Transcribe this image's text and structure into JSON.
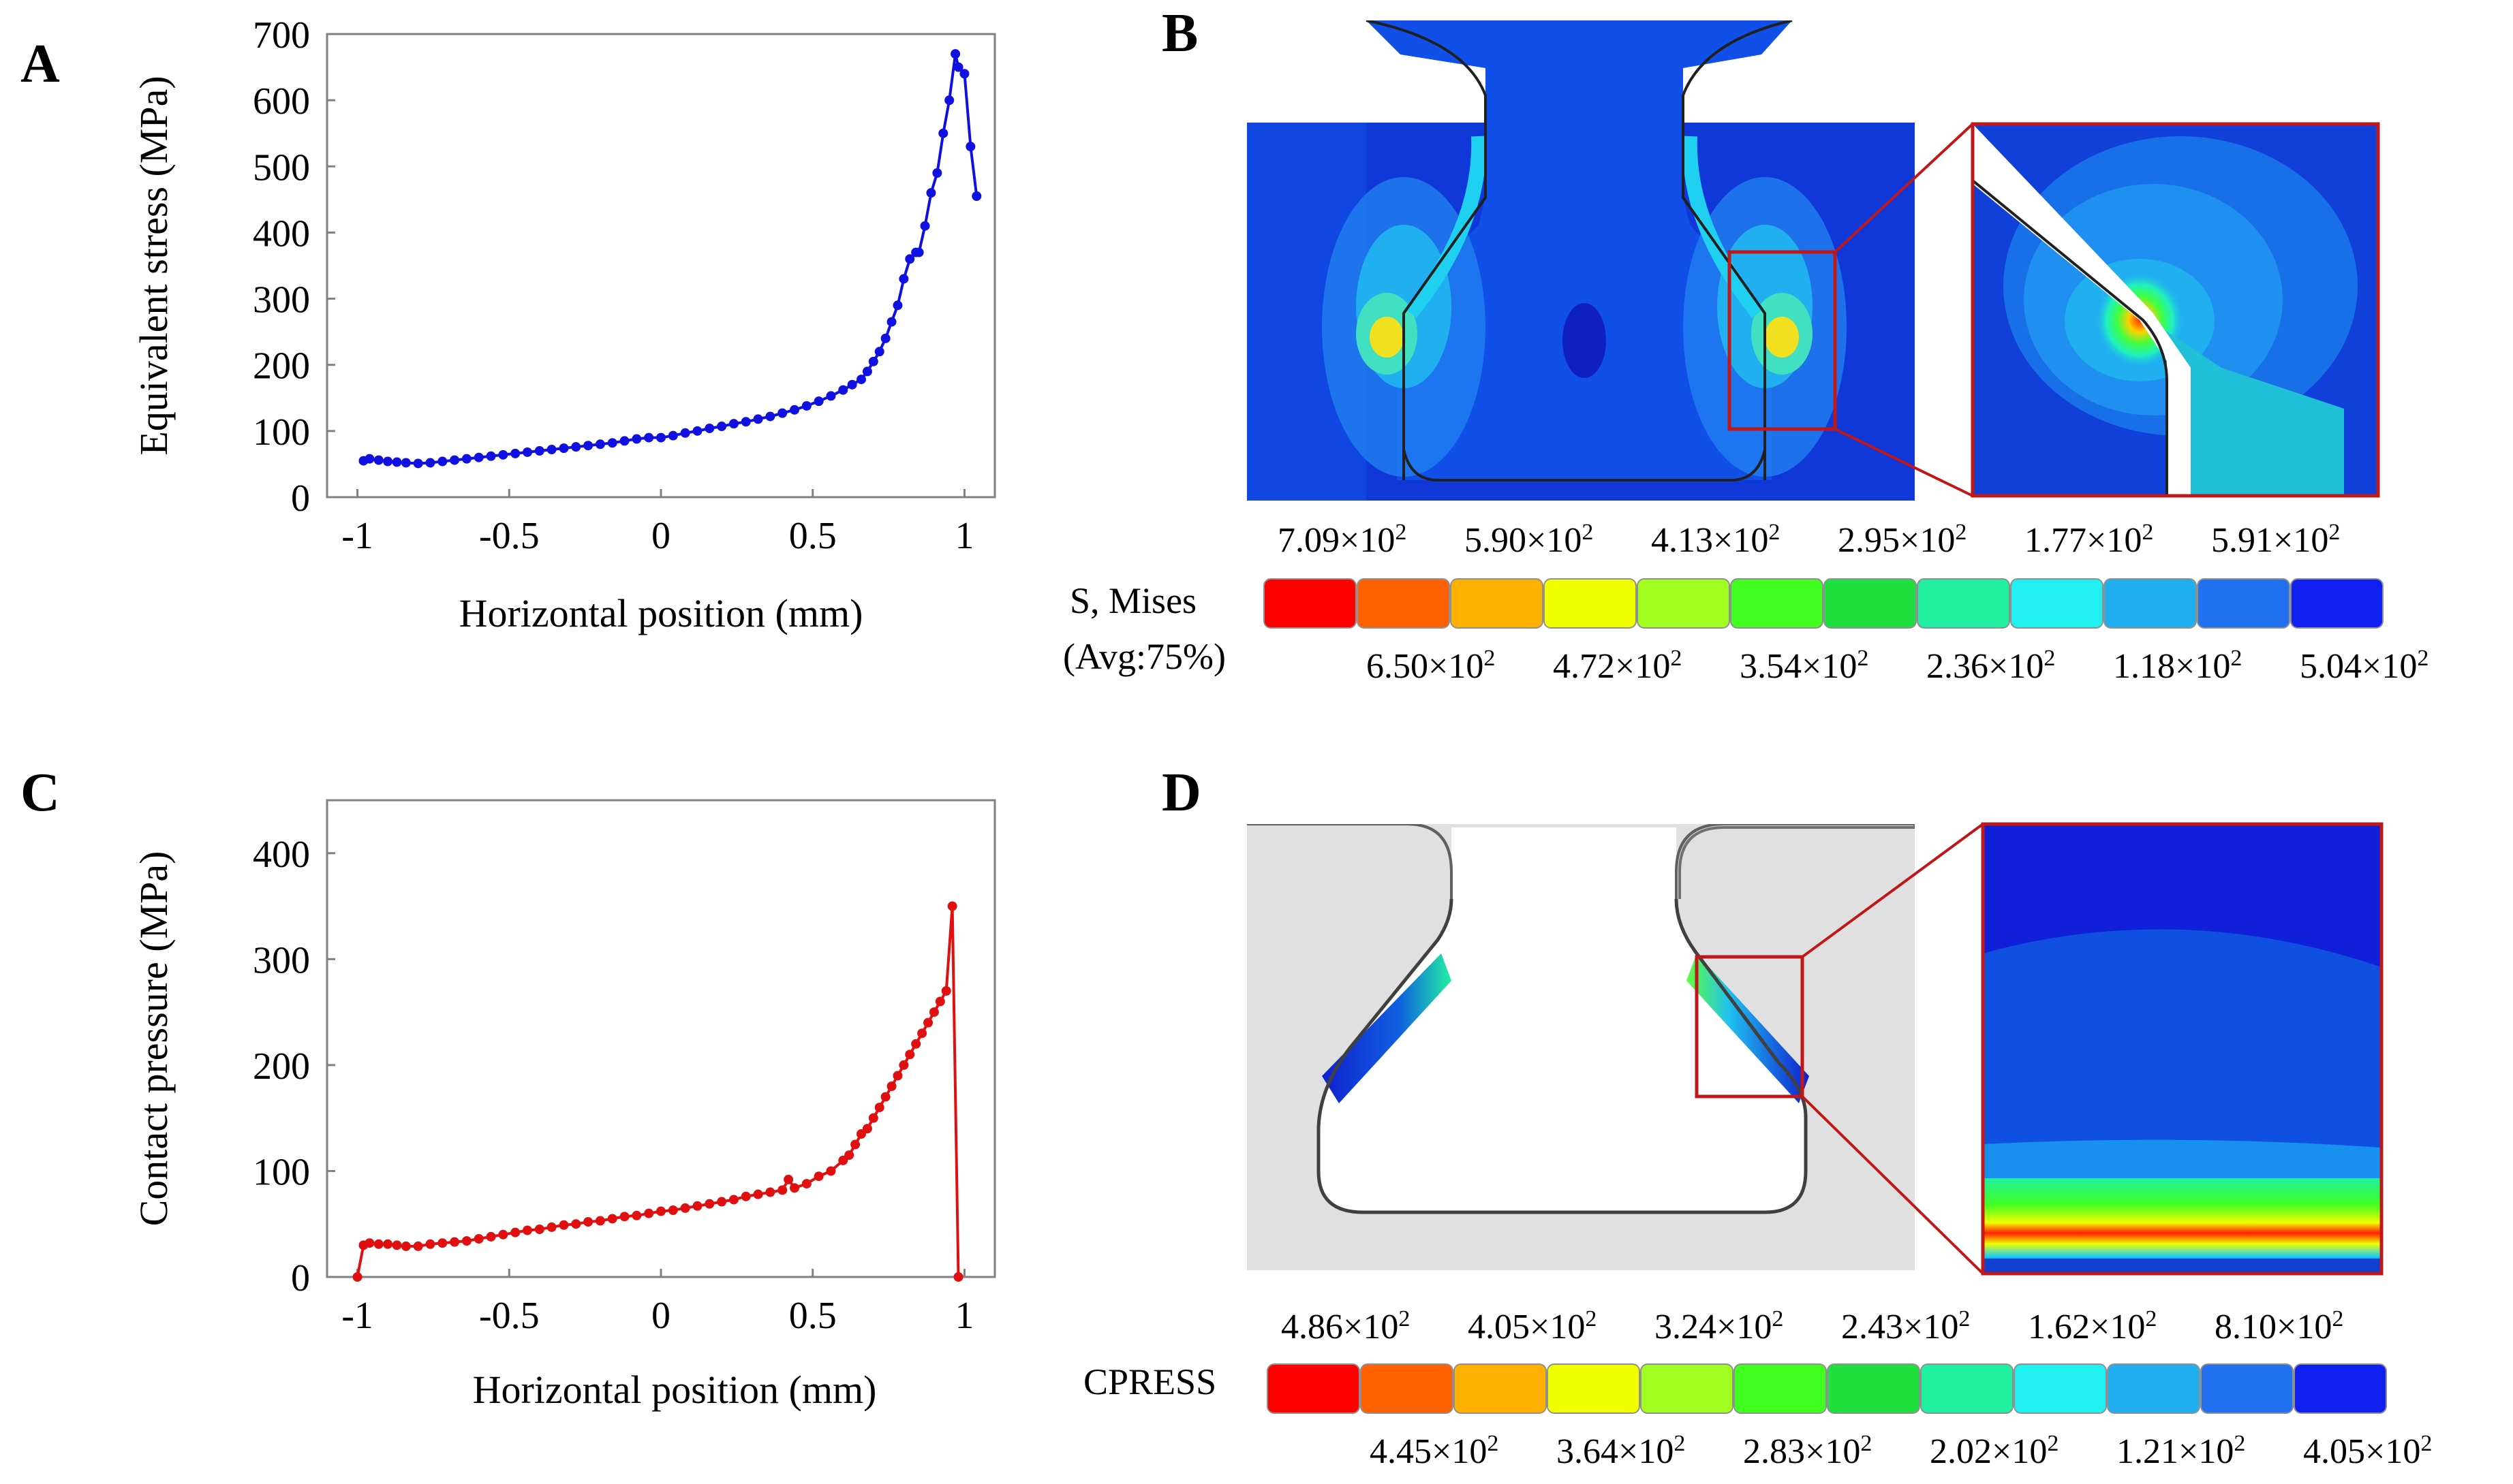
{
  "panels": {
    "A": {
      "label": "A"
    },
    "B": {
      "label": "B"
    },
    "C": {
      "label": "C"
    },
    "D": {
      "label": "D"
    }
  },
  "chart_data": [
    {
      "id": "A",
      "type": "line",
      "title": "",
      "xlabel": "Horizontal position (mm)",
      "ylabel": "Equivalent stress (MPa)",
      "xlim": [
        -1.1,
        1.1
      ],
      "ylim": [
        0,
        700
      ],
      "xticks": [
        -1,
        -0.5,
        0,
        0.5,
        1
      ],
      "xtick_labels": [
        "-1",
        "-0.5",
        "0",
        "0.5",
        "1"
      ],
      "yticks": [
        0,
        100,
        200,
        300,
        400,
        500,
        600,
        700
      ],
      "ytick_labels": [
        "0",
        "100",
        "200",
        "300",
        "400",
        "500",
        "600",
        "700"
      ],
      "color": "#1010e0",
      "series": [
        {
          "name": "Equivalent stress",
          "x": [
            -0.98,
            -0.96,
            -0.93,
            -0.9,
            -0.87,
            -0.84,
            -0.8,
            -0.76,
            -0.72,
            -0.68,
            -0.64,
            -0.6,
            -0.56,
            -0.52,
            -0.48,
            -0.44,
            -0.4,
            -0.36,
            -0.32,
            -0.28,
            -0.24,
            -0.2,
            -0.16,
            -0.12,
            -0.08,
            -0.04,
            0.0,
            0.04,
            0.08,
            0.12,
            0.16,
            0.2,
            0.24,
            0.28,
            0.32,
            0.36,
            0.4,
            0.44,
            0.48,
            0.52,
            0.56,
            0.6,
            0.63,
            0.66,
            0.68,
            0.7,
            0.72,
            0.74,
            0.76,
            0.78,
            0.8,
            0.82,
            0.84,
            0.85,
            0.87,
            0.89,
            0.91,
            0.93,
            0.95,
            0.97,
            0.98,
            1.0,
            1.02,
            1.04
          ],
          "y": [
            55,
            58,
            56,
            54,
            53,
            52,
            51,
            52,
            54,
            56,
            58,
            60,
            62,
            64,
            66,
            68,
            70,
            72,
            74,
            76,
            78,
            80,
            82,
            85,
            88,
            90,
            90,
            93,
            97,
            100,
            104,
            107,
            111,
            114,
            118,
            122,
            127,
            132,
            138,
            145,
            153,
            162,
            170,
            178,
            190,
            205,
            220,
            240,
            265,
            290,
            330,
            360,
            370,
            370,
            410,
            460,
            490,
            550,
            600,
            670,
            650,
            640,
            530,
            455
          ]
        }
      ]
    },
    {
      "id": "C",
      "type": "line",
      "title": "",
      "xlabel": "Horizontal position (mm)",
      "ylabel": "Contact pressure (MPa)",
      "xlim": [
        -1.1,
        1.1
      ],
      "ylim": [
        0,
        450
      ],
      "xticks": [
        -1,
        -0.5,
        0,
        0.5,
        1
      ],
      "xtick_labels": [
        "-1",
        "-0.5",
        "0",
        "0.5",
        "1"
      ],
      "yticks": [
        0,
        100,
        200,
        300,
        400
      ],
      "ytick_labels": [
        "0",
        "100",
        "200",
        "300",
        "400"
      ],
      "color": "#e01010",
      "series": [
        {
          "name": "Contact pressure",
          "x": [
            -1.0,
            -0.98,
            -0.96,
            -0.93,
            -0.9,
            -0.87,
            -0.84,
            -0.8,
            -0.76,
            -0.72,
            -0.68,
            -0.64,
            -0.6,
            -0.56,
            -0.52,
            -0.48,
            -0.44,
            -0.4,
            -0.36,
            -0.32,
            -0.28,
            -0.24,
            -0.2,
            -0.16,
            -0.12,
            -0.08,
            -0.04,
            0.0,
            0.04,
            0.08,
            0.12,
            0.16,
            0.2,
            0.24,
            0.28,
            0.32,
            0.36,
            0.4,
            0.42,
            0.44,
            0.48,
            0.52,
            0.56,
            0.6,
            0.62,
            0.64,
            0.66,
            0.68,
            0.7,
            0.72,
            0.74,
            0.76,
            0.78,
            0.8,
            0.82,
            0.84,
            0.86,
            0.88,
            0.9,
            0.92,
            0.94,
            0.96,
            0.98
          ],
          "y": [
            0,
            30,
            32,
            31,
            31,
            30,
            29,
            29,
            31,
            32,
            33,
            34,
            36,
            38,
            40,
            42,
            44,
            45,
            47,
            49,
            50,
            52,
            53,
            55,
            57,
            58,
            60,
            62,
            63,
            65,
            67,
            69,
            71,
            73,
            76,
            78,
            80,
            82,
            92,
            84,
            88,
            95,
            100,
            110,
            115,
            125,
            135,
            140,
            150,
            160,
            170,
            180,
            190,
            200,
            210,
            220,
            230,
            240,
            250,
            260,
            270,
            350,
            0
          ]
        }
      ]
    }
  ],
  "panel_b": {
    "legend_title_line1": "S,  Mises",
    "legend_title_line2": "(Avg:75%)",
    "legend_colors": [
      "#ff0000",
      "#ff6000",
      "#ffb000",
      "#f0ff00",
      "#a0ff20",
      "#40ff20",
      "#20e040",
      "#20f0a0",
      "#20f0f0",
      "#20b0f0",
      "#2070f0",
      "#1020f0"
    ],
    "top_labels": [
      "7.09×10",
      "5.90×10",
      "4.13×10",
      "2.95×10",
      "1.77×10",
      "5.91×10"
    ],
    "bottom_labels": [
      "6.50×10",
      "4.72×10",
      "3.54×10",
      "2.36×10",
      "1.18×10",
      "5.04×10"
    ],
    "exponent": "2"
  },
  "panel_d": {
    "legend_title": "CPRESS",
    "legend_colors": [
      "#ff0000",
      "#ff6000",
      "#ffb000",
      "#f0ff00",
      "#a0ff20",
      "#40ff20",
      "#20e040",
      "#20f0a0",
      "#20f0f0",
      "#20b0f0",
      "#2070f0",
      "#1020f0"
    ],
    "top_labels": [
      "4.86×10",
      "4.05×10",
      "3.24×10",
      "2.43×10",
      "1.62×10",
      "8.10×10"
    ],
    "bottom_labels": [
      "4.45×10",
      "3.64×10",
      "2.83×10",
      "2.02×10",
      "1.21×10",
      "4.05×10"
    ],
    "exponent": "2"
  }
}
